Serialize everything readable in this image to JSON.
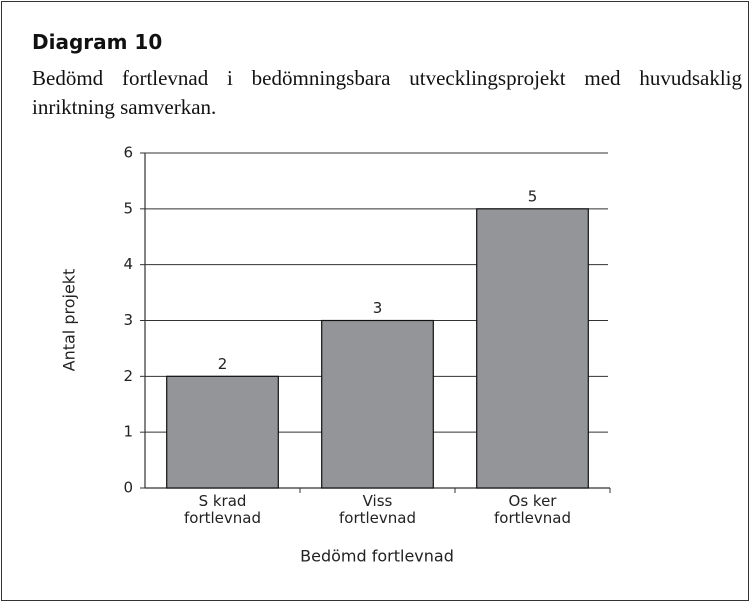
{
  "chart_data": {
    "type": "bar",
    "title": "Diagram 10",
    "subtitle": "Bedömd fortlevnad i bedömningsbara utvecklingsprojekt med huvudsaklig inriktning samverkan.",
    "categories": [
      "S krad fortlevnad",
      "Viss fortlevnad",
      "Os ker fortlevnad"
    ],
    "values": [
      2,
      3,
      5
    ],
    "color": "#939598",
    "ylim": [
      0,
      6
    ],
    "yticks": [
      0,
      1,
      2,
      3,
      4,
      5,
      6
    ],
    "grid": true,
    "xlabel": "Bedömd fortlevnad",
    "ylabel": "Antal projekt"
  }
}
